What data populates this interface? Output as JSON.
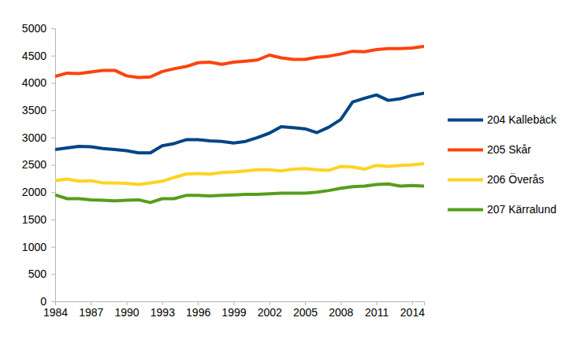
{
  "chart_data": {
    "type": "line",
    "x": [
      1984,
      1985,
      1986,
      1987,
      1988,
      1989,
      1990,
      1991,
      1992,
      1993,
      1994,
      1995,
      1996,
      1997,
      1998,
      1999,
      2000,
      2001,
      2002,
      2003,
      2004,
      2005,
      2006,
      2007,
      2008,
      2009,
      2010,
      2011,
      2012,
      2013,
      2014,
      2015
    ],
    "xlim": [
      1984,
      2015
    ],
    "xticks": [
      1984,
      1987,
      1990,
      1993,
      1996,
      1999,
      2002,
      2005,
      2008,
      2011,
      2014
    ],
    "ylim": [
      0,
      5000
    ],
    "yticks": [
      0,
      500,
      1000,
      1500,
      2000,
      2500,
      3000,
      3500,
      4000,
      4500,
      5000
    ],
    "grid": false,
    "legend": "right",
    "series": [
      {
        "name": "204 Kallebäck",
        "color": "#004586",
        "values": [
          2780,
          2810,
          2840,
          2830,
          2800,
          2780,
          2760,
          2720,
          2720,
          2850,
          2890,
          2960,
          2960,
          2940,
          2930,
          2900,
          2930,
          3000,
          3080,
          3200,
          3180,
          3160,
          3090,
          3190,
          3330,
          3650,
          3720,
          3780,
          3680,
          3710,
          3770,
          3810
        ]
      },
      {
        "name": "205 Skår",
        "color": "#ff420e",
        "values": [
          4120,
          4180,
          4170,
          4200,
          4230,
          4230,
          4130,
          4100,
          4110,
          4210,
          4260,
          4300,
          4370,
          4380,
          4340,
          4380,
          4400,
          4420,
          4510,
          4460,
          4430,
          4430,
          4470,
          4490,
          4530,
          4580,
          4570,
          4610,
          4630,
          4630,
          4640,
          4670
        ]
      },
      {
        "name": "206 Överås",
        "color": "#ffd320",
        "values": [
          2210,
          2240,
          2200,
          2210,
          2170,
          2170,
          2160,
          2140,
          2170,
          2200,
          2270,
          2330,
          2340,
          2330,
          2360,
          2370,
          2390,
          2410,
          2410,
          2390,
          2420,
          2430,
          2410,
          2400,
          2470,
          2460,
          2420,
          2490,
          2470,
          2490,
          2500,
          2520
        ]
      },
      {
        "name": "207 Kärralund",
        "color": "#579d1c",
        "values": [
          1950,
          1880,
          1880,
          1860,
          1850,
          1840,
          1850,
          1860,
          1810,
          1880,
          1880,
          1940,
          1940,
          1930,
          1940,
          1950,
          1960,
          1960,
          1970,
          1980,
          1980,
          1980,
          2000,
          2030,
          2070,
          2100,
          2110,
          2140,
          2150,
          2110,
          2120,
          2110
        ]
      }
    ]
  }
}
